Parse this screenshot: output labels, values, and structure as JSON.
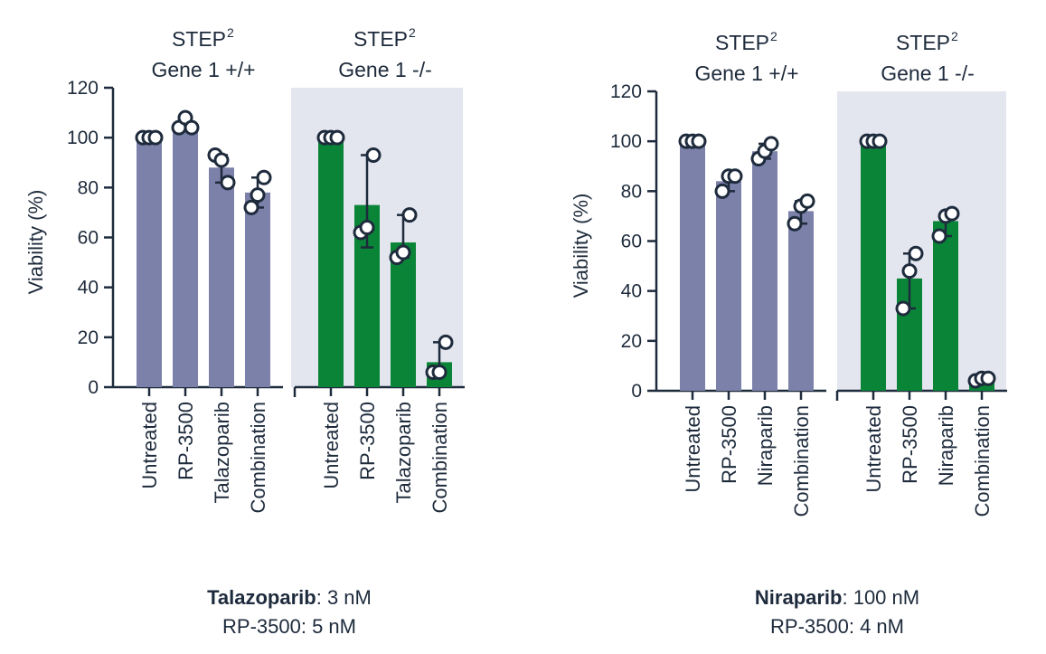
{
  "colors": {
    "wild_type": "#7c81aa",
    "knockout": "#0a8437",
    "shade": "#e4e6ef",
    "ink": "#1e2b3c",
    "point_fill": "#ffffff"
  },
  "chart_data": [
    {
      "type": "bar",
      "ylabel": "Viability (%)",
      "ylim": [
        0,
        120
      ],
      "yticks": [
        "0",
        "20",
        "40",
        "60",
        "80",
        "100",
        "120"
      ],
      "groups": [
        {
          "title_main": "STEP",
          "title_sup": "2",
          "title_sub": "Gene 1 +/+",
          "shaded": false,
          "color_key": "wild_type",
          "categories": [
            "Untreated",
            "RP-3500",
            "Talazoparib",
            "Combination"
          ],
          "values": [
            100,
            105,
            88,
            78
          ],
          "errors": [
            [
              null,
              null
            ],
            [
              null,
              null
            ],
            [
              82,
              93
            ],
            [
              72,
              84
            ]
          ],
          "points": [
            [
              100,
              100,
              100
            ],
            [
              104,
              108,
              104
            ],
            [
              93,
              91,
              82
            ],
            [
              72,
              77,
              84
            ]
          ]
        },
        {
          "title_main": "STEP",
          "title_sup": "2",
          "title_sub": "Gene 1 -/-",
          "shaded": true,
          "color_key": "knockout",
          "categories": [
            "Untreated",
            "RP-3500",
            "Talazoparib",
            "Combination"
          ],
          "values": [
            100,
            73,
            58,
            10
          ],
          "errors": [
            [
              null,
              null
            ],
            [
              56,
              93
            ],
            [
              52,
              69
            ],
            [
              6,
              18
            ]
          ],
          "points": [
            [
              100,
              100,
              100
            ],
            [
              62,
              64,
              93
            ],
            [
              52,
              54,
              69
            ],
            [
              6,
              6,
              18
            ]
          ]
        }
      ],
      "caption": {
        "drug": "Talazoparib",
        "drug_dose": ": 3 nM",
        "line2": "RP-3500: 5 nM"
      }
    },
    {
      "type": "bar",
      "ylabel": "Viability (%)",
      "ylim": [
        0,
        120
      ],
      "yticks": [
        "0",
        "20",
        "40",
        "60",
        "80",
        "100",
        "120"
      ],
      "groups": [
        {
          "title_main": "STEP",
          "title_sup": "2",
          "title_sub": "Gene 1 +/+",
          "shaded": false,
          "color_key": "wild_type",
          "categories": [
            "Untreated",
            "RP-3500",
            "Niraparib",
            "Combination"
          ],
          "values": [
            100,
            84,
            96,
            72
          ],
          "errors": [
            [
              null,
              null
            ],
            [
              80,
              86
            ],
            [
              93,
              99
            ],
            [
              67,
              76
            ]
          ],
          "points": [
            [
              100,
              100,
              100
            ],
            [
              80,
              86,
              86
            ],
            [
              93,
              96,
              99
            ],
            [
              67,
              74,
              76
            ]
          ]
        },
        {
          "title_main": "STEP",
          "title_sup": "2",
          "title_sub": "Gene 1 -/-",
          "shaded": true,
          "color_key": "knockout",
          "categories": [
            "Untreated",
            "RP-3500",
            "Niraparib",
            "Combination"
          ],
          "values": [
            100,
            45,
            68,
            4
          ],
          "errors": [
            [
              null,
              null
            ],
            [
              33,
              55
            ],
            [
              62,
              71
            ],
            [
              4,
              5
            ]
          ],
          "points": [
            [
              100,
              100,
              100
            ],
            [
              33,
              48,
              55
            ],
            [
              62,
              70,
              71
            ],
            [
              4,
              5,
              5
            ]
          ]
        }
      ],
      "caption": {
        "drug": "Niraparib",
        "drug_dose": ": 100 nM",
        "line2": "RP-3500: 4 nM"
      }
    }
  ]
}
